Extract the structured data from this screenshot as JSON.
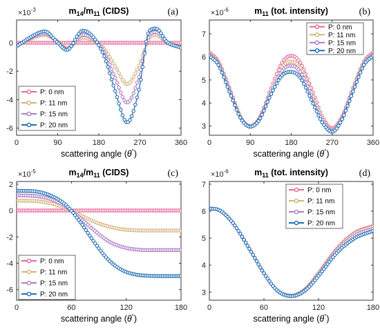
{
  "chart_data": [
    {
      "type": "line",
      "panel": "(a)",
      "title": "m14/m11 (CIDS)",
      "title_parts": {
        "m1": "m",
        "s1": "14",
        "slash": "/m",
        "s2": "11",
        "rest": " (CIDS)"
      },
      "xlabel": "scattering angle (θ°)",
      "xlabel_parts": {
        "pre": "scattering angle (",
        "theta": "θ",
        "deg": "°",
        "post": ")"
      },
      "y_multiplier": "×10⁻³",
      "y_multiplier_parts": {
        "base": "×10",
        "exp": "-3"
      },
      "xlim": [
        0,
        360
      ],
      "ylim": [
        -6.5,
        1.6
      ],
      "xticks": [
        0,
        90,
        180,
        270,
        360
      ],
      "yticks": [
        -6,
        -4,
        -2,
        0
      ],
      "legend": {
        "position": "bottom-left"
      },
      "series": [
        {
          "name": "P: 0 nm",
          "color": "#e8679b",
          "x": [
            0,
            360
          ],
          "y": [
            0,
            0
          ]
        },
        {
          "name": "P: 11 nm",
          "color": "#d4b37c",
          "x": [
            0,
            45,
            62,
            90,
            110,
            145,
            190,
            215,
            242,
            268,
            290,
            305,
            330,
            360
          ],
          "y": [
            -0.15,
            0.45,
            0.55,
            0.1,
            -0.35,
            0.35,
            -0.35,
            -1.6,
            -2.9,
            -1.6,
            0.3,
            0.55,
            0.0,
            -0.25
          ]
        },
        {
          "name": "P: 15 nm",
          "color": "#b07cc6",
          "x": [
            0,
            45,
            62,
            90,
            110,
            145,
            190,
            215,
            242,
            268,
            290,
            305,
            330,
            360
          ],
          "y": [
            -0.2,
            0.55,
            0.65,
            0.05,
            -0.45,
            0.55,
            -0.55,
            -2.4,
            -4.2,
            -2.4,
            0.5,
            0.75,
            0.0,
            -0.3
          ]
        },
        {
          "name": "P: 20 nm",
          "color": "#1f6fb5",
          "x": [
            0,
            45,
            62,
            90,
            110,
            145,
            190,
            215,
            242,
            268,
            290,
            305,
            330,
            360
          ],
          "y": [
            -0.25,
            0.65,
            0.8,
            0.0,
            -0.5,
            0.85,
            -0.8,
            -3.3,
            -5.6,
            -3.3,
            0.8,
            1.0,
            0.05,
            -0.35
          ]
        }
      ]
    },
    {
      "type": "line",
      "panel": "(b)",
      "title": "m11 (tot. intensity)",
      "title_parts": {
        "m1": "m",
        "s1": "11",
        "rest": " (tot. intensity)"
      },
      "xlabel": "scattering angle (θ°)",
      "xlabel_parts": {
        "pre": "scattering angle (",
        "theta": "θ",
        "deg": "°",
        "post": ")"
      },
      "y_multiplier": "×10⁻⁶",
      "y_multiplier_parts": {
        "base": "×10",
        "exp": "-6"
      },
      "xlim": [
        0,
        360
      ],
      "ylim": [
        2.6,
        7.6
      ],
      "xticks": [
        0,
        90,
        180,
        270,
        360
      ],
      "yticks": [
        3,
        4,
        5,
        6,
        7
      ],
      "legend": {
        "position": "top-right"
      },
      "series": [
        {
          "name": "P: 0 nm",
          "color": "#e8679b",
          "x": [
            0,
            20,
            45,
            70,
            90,
            110,
            135,
            160,
            180,
            200,
            225,
            250,
            270,
            290,
            315,
            340,
            360
          ],
          "y": [
            6.2,
            5.8,
            4.6,
            3.35,
            3.0,
            3.35,
            4.6,
            5.75,
            6.05,
            5.75,
            4.6,
            3.35,
            2.9,
            3.35,
            4.6,
            5.8,
            6.2
          ]
        },
        {
          "name": "P: 11 nm",
          "color": "#d4b37c",
          "x": [
            0,
            20,
            45,
            70,
            90,
            110,
            135,
            160,
            180,
            200,
            225,
            250,
            270,
            290,
            315,
            340,
            360
          ],
          "y": [
            6.15,
            5.75,
            4.55,
            3.35,
            3.0,
            3.32,
            4.5,
            5.55,
            5.8,
            5.52,
            4.42,
            3.25,
            2.85,
            3.3,
            4.55,
            5.75,
            6.15
          ]
        },
        {
          "name": "P: 15 nm",
          "color": "#b07cc6",
          "x": [
            0,
            20,
            45,
            70,
            90,
            110,
            135,
            160,
            180,
            200,
            225,
            250,
            270,
            290,
            315,
            340,
            360
          ],
          "y": [
            6.1,
            5.7,
            4.5,
            3.32,
            2.98,
            3.3,
            4.42,
            5.4,
            5.62,
            5.35,
            4.3,
            3.2,
            2.8,
            3.27,
            4.5,
            5.7,
            6.1
          ]
        },
        {
          "name": "P: 20 nm",
          "color": "#1f6fb5",
          "x": [
            0,
            20,
            45,
            70,
            90,
            110,
            135,
            160,
            180,
            200,
            225,
            250,
            270,
            290,
            315,
            340,
            360
          ],
          "y": [
            6.05,
            5.65,
            4.45,
            3.3,
            2.97,
            3.27,
            4.35,
            5.2,
            5.35,
            5.1,
            4.1,
            3.1,
            2.75,
            3.22,
            4.45,
            5.65,
            6.05
          ]
        }
      ]
    },
    {
      "type": "line",
      "panel": "(c)",
      "title": "m14/m11 (CIDS)",
      "title_parts": {
        "m1": "m",
        "s1": "14",
        "slash": "/m",
        "s2": "11",
        "rest": " (CIDS)"
      },
      "xlabel": "scattering angle (θ°)",
      "xlabel_parts": {
        "pre": "scattering angle (",
        "theta": "θ",
        "deg": "°",
        "post": ")"
      },
      "y_multiplier": "×10⁻⁵",
      "y_multiplier_parts": {
        "base": "×10",
        "exp": "-5"
      },
      "xlim": [
        0,
        180
      ],
      "ylim": [
        -6.8,
        2.2
      ],
      "xticks": [
        0,
        60,
        120,
        180
      ],
      "yticks": [
        -6,
        -4,
        -2,
        0,
        2
      ],
      "legend": {
        "position": "bottom-left"
      },
      "series": [
        {
          "name": "P: 0 nm",
          "color": "#e8679b",
          "x": [
            0,
            180
          ],
          "y": [
            0,
            0
          ]
        },
        {
          "name": "P: 11 nm",
          "color": "#d4b37c",
          "x": [
            0,
            20,
            40,
            55,
            70,
            85,
            100,
            115,
            130,
            145,
            160,
            180
          ],
          "y": [
            0.75,
            0.72,
            0.5,
            0.15,
            -0.35,
            -0.85,
            -1.2,
            -1.42,
            -1.5,
            -1.52,
            -1.52,
            -1.52
          ]
        },
        {
          "name": "P: 15 nm",
          "color": "#b07cc6",
          "x": [
            0,
            20,
            40,
            55,
            70,
            85,
            100,
            115,
            130,
            145,
            160,
            180
          ],
          "y": [
            1.15,
            1.1,
            0.8,
            0.25,
            -0.6,
            -1.5,
            -2.3,
            -2.75,
            -2.95,
            -3.0,
            -3.0,
            -3.0
          ]
        },
        {
          "name": "P: 20 nm",
          "color": "#1f6fb5",
          "x": [
            0,
            20,
            40,
            55,
            70,
            85,
            100,
            115,
            130,
            145,
            160,
            180
          ],
          "y": [
            1.5,
            1.45,
            1.05,
            0.35,
            -0.9,
            -2.4,
            -3.7,
            -4.5,
            -4.85,
            -4.95,
            -4.97,
            -4.97
          ]
        }
      ]
    },
    {
      "type": "line",
      "panel": "(d)",
      "title": "m11 (tot. intensity)",
      "title_parts": {
        "m1": "m",
        "s1": "11",
        "rest": " (tot. intensity)"
      },
      "xlabel": "scattering angle (θ°)",
      "xlabel_parts": {
        "pre": "scattering angle (",
        "theta": "θ",
        "deg": "°",
        "post": ")"
      },
      "y_multiplier": "×10⁻⁶",
      "y_multiplier_parts": {
        "base": "×10",
        "exp": "-6"
      },
      "xlim": [
        0,
        180
      ],
      "ylim": [
        2.7,
        7.1
      ],
      "xticks": [
        0,
        60,
        120,
        180
      ],
      "yticks": [
        3,
        4,
        5,
        6,
        7
      ],
      "legend": {
        "position": "top-right"
      },
      "series": [
        {
          "name": "P: 0 nm",
          "color": "#e8679b",
          "x": [
            0,
            10,
            25,
            45,
            60,
            75,
            90,
            105,
            120,
            140,
            160,
            180
          ],
          "y": [
            6.1,
            6.05,
            5.6,
            4.55,
            3.7,
            3.05,
            2.87,
            3.1,
            3.7,
            4.6,
            5.2,
            5.45
          ]
        },
        {
          "name": "P: 11 nm",
          "color": "#d4b37c",
          "x": [
            0,
            10,
            25,
            45,
            60,
            75,
            90,
            105,
            120,
            140,
            160,
            180
          ],
          "y": [
            6.1,
            6.05,
            5.6,
            4.55,
            3.7,
            3.05,
            2.87,
            3.1,
            3.68,
            4.57,
            5.17,
            5.42
          ]
        },
        {
          "name": "P: 15 nm",
          "color": "#b07cc6",
          "x": [
            0,
            10,
            25,
            45,
            60,
            75,
            90,
            105,
            120,
            140,
            160,
            180
          ],
          "y": [
            6.1,
            6.05,
            5.6,
            4.55,
            3.7,
            3.05,
            2.86,
            3.08,
            3.65,
            4.52,
            5.1,
            5.35
          ]
        },
        {
          "name": "P: 20 nm",
          "color": "#1f6fb5",
          "x": [
            0,
            10,
            25,
            45,
            60,
            75,
            90,
            105,
            120,
            140,
            160,
            180
          ],
          "y": [
            6.1,
            6.05,
            5.6,
            4.55,
            3.7,
            3.05,
            2.85,
            3.05,
            3.6,
            4.45,
            5.0,
            5.27
          ]
        }
      ]
    }
  ]
}
